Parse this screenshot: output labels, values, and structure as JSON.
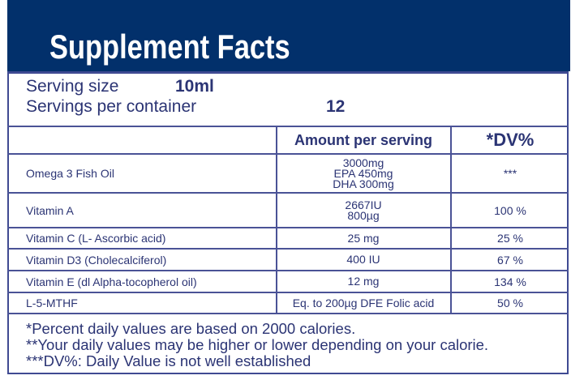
{
  "title": "Supplement Facts",
  "serving": {
    "size_label": "Serving size",
    "size_value": "10ml",
    "per_container_label": "Servings per container",
    "per_container_value": "12"
  },
  "table": {
    "headers": [
      "",
      "Amount per serving",
      "*DV%"
    ],
    "rows": [
      {
        "name": "Omega 3 Fish Oil",
        "amount": [
          "3000mg",
          "EPA 450mg",
          "DHA 300mg"
        ],
        "dv": "***"
      },
      {
        "name": "Vitamin A",
        "amount": [
          "2667IU",
          "800µg"
        ],
        "dv": "100 %"
      },
      {
        "name": "Vitamin C (L- Ascorbic acid)",
        "amount": [
          "25 mg"
        ],
        "dv": "25 %"
      },
      {
        "name": "Vitamin D3 (Cholecalciferol)",
        "amount": [
          "400 IU"
        ],
        "dv": "67 %"
      },
      {
        "name": "Vitamin E (dl Alpha-tocopherol oil)",
        "amount": [
          "12 mg"
        ],
        "dv": "134 %"
      },
      {
        "name": "L-5-MTHF",
        "amount": [
          "Eq. to 200µg DFE Folic acid"
        ],
        "dv": "50 %"
      }
    ]
  },
  "footnotes": [
    "*Percent daily values are based on 2000 calories.",
    "**Your daily values may be higher or lower depending on your calorie.",
    "***DV%: Daily Value is not well established"
  ],
  "colors": {
    "header_bg": "#02306b",
    "text": "#2b3474",
    "border": "#4a5296"
  }
}
